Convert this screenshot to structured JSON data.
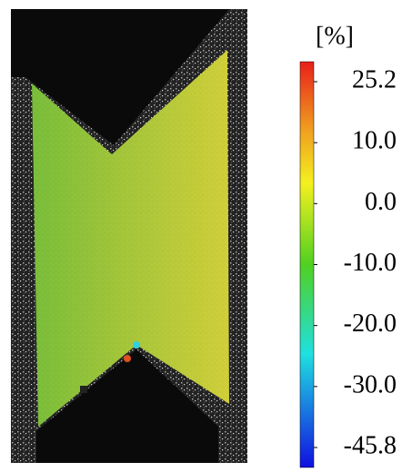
{
  "colorbar": {
    "unit": "[%]",
    "ticks": [
      25.2,
      {
        "value": 10,
        "label": "10.0"
      },
      {
        "value": 0,
        "label": "0.0"
      },
      {
        "value": -10,
        "label": "-10.0"
      },
      {
        "value": -20,
        "label": "-20.0"
      },
      {
        "value": -30,
        "label": "-30.0"
      },
      -45.8
    ]
  }
}
